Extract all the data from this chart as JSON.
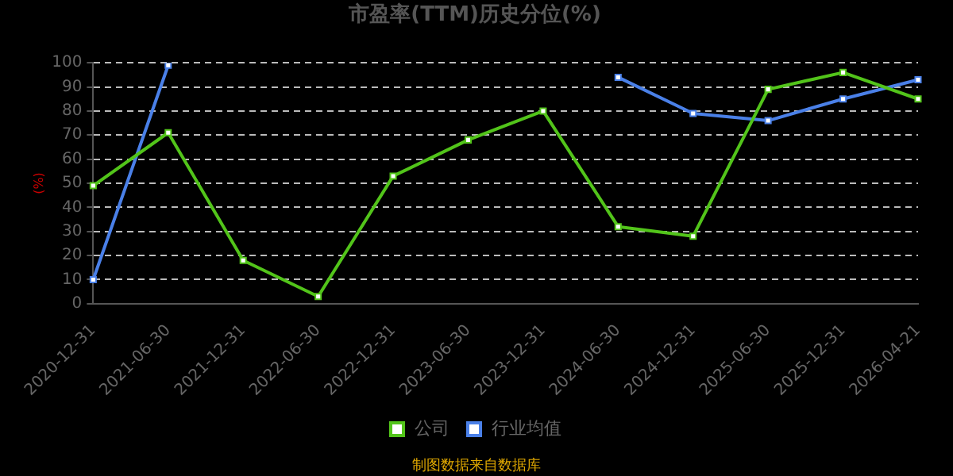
{
  "chart_data": {
    "type": "line",
    "title": "市盈率(TTM)历史分位(%)",
    "ylabel": "(%)",
    "categories": [
      "2020-12-31",
      "2021-06-30",
      "2021-12-31",
      "2022-06-30",
      "2022-12-31",
      "2023-06-30",
      "2023-12-31",
      "2024-06-30",
      "2024-12-31",
      "2025-06-30",
      "2025-12-31",
      "2026-04-21"
    ],
    "series": [
      {
        "name": "公司",
        "color": "#52c41a",
        "values": [
          49,
          71,
          18,
          3,
          53,
          68,
          80,
          32,
          28,
          89,
          96,
          85
        ]
      },
      {
        "name": "行业均值",
        "color": "#4a80e8",
        "values": [
          10,
          99,
          null,
          null,
          null,
          null,
          null,
          94,
          79,
          76,
          85,
          93
        ]
      }
    ],
    "ylim": [
      0,
      100
    ],
    "yticks": [
      0,
      10,
      20,
      30,
      40,
      50,
      60,
      70,
      80,
      90,
      100
    ],
    "grid": "y",
    "legend": "bottom",
    "marker": "square",
    "line_style": "solid",
    "annotations": [
      "制图数据来自数据库"
    ]
  }
}
